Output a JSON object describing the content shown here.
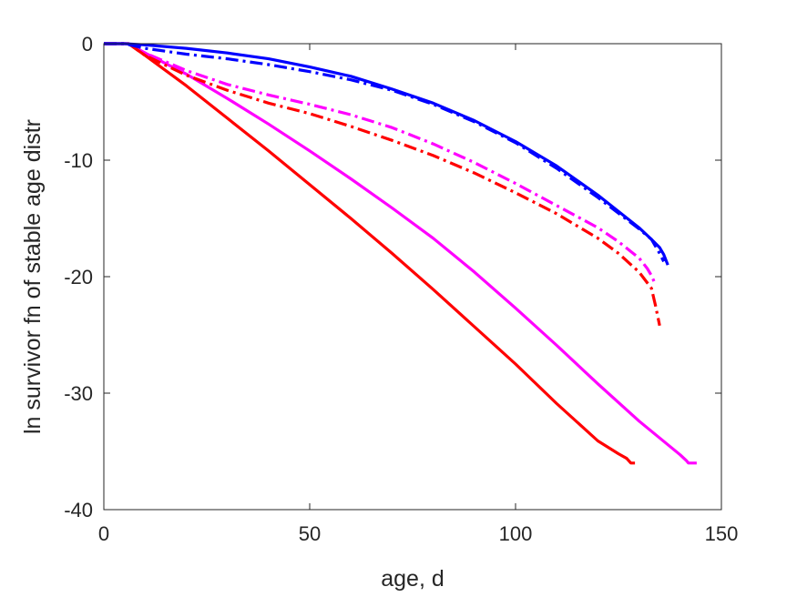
{
  "chart_data": {
    "type": "line",
    "title": "",
    "xlabel": "age, d",
    "ylabel": "ln survivor fn of stable age distr",
    "xlim": [
      0,
      150
    ],
    "ylim": [
      -40,
      0
    ],
    "xticks": [
      0,
      50,
      100,
      150
    ],
    "yticks": [
      0,
      -10,
      -20,
      -30,
      -40
    ],
    "xtick_labels": [
      "0",
      "50",
      "100",
      "150"
    ],
    "ytick_labels": [
      "0",
      "-10",
      "-20",
      "-30",
      "-40"
    ],
    "grid": false,
    "legend": "none",
    "series": [
      {
        "color": "#ff00ff",
        "style": "solid",
        "x": [
          0,
          6,
          10,
          20,
          30,
          40,
          50,
          60,
          70,
          80,
          90,
          100,
          110,
          120,
          130,
          140,
          141.5,
          142,
          144
        ],
        "y": [
          0,
          0,
          -0.8,
          -2.6,
          -4.7,
          -6.9,
          -9.2,
          -11.6,
          -14.1,
          -16.7,
          -19.6,
          -22.7,
          -25.9,
          -29.2,
          -32.4,
          -35.3,
          -35.8,
          -36,
          -36
        ]
      },
      {
        "color": "#ff00ff",
        "style": "dashdot",
        "x": [
          0,
          6,
          10,
          20,
          30,
          40,
          50,
          60,
          70,
          80,
          90,
          100,
          110,
          120,
          125,
          130,
          132,
          133,
          134
        ],
        "y": [
          0,
          0,
          -0.8,
          -2.3,
          -3.5,
          -4.4,
          -5.2,
          -6.1,
          -7.2,
          -8.6,
          -10.2,
          -12.0,
          -13.9,
          -15.8,
          -17.0,
          -18.4,
          -19.3,
          -19.9,
          -20.7
        ]
      },
      {
        "color": "#ff0000",
        "style": "solid",
        "x": [
          0,
          6,
          10,
          20,
          30,
          40,
          50,
          60,
          70,
          80,
          90,
          100,
          110,
          120,
          125,
          127,
          128,
          129
        ],
        "y": [
          0,
          0,
          -1.0,
          -3.6,
          -6.4,
          -9.2,
          -12.1,
          -15.0,
          -18.0,
          -21.1,
          -24.3,
          -27.5,
          -30.9,
          -34.1,
          -35.2,
          -35.6,
          -36,
          -36
        ]
      },
      {
        "color": "#ff0000",
        "style": "dashdot",
        "x": [
          0,
          6,
          10,
          20,
          30,
          40,
          50,
          60,
          70,
          80,
          90,
          100,
          110,
          120,
          125,
          130,
          133,
          134,
          135
        ],
        "y": [
          0,
          0,
          -1.0,
          -2.7,
          -4.0,
          -5.1,
          -6.0,
          -7.1,
          -8.3,
          -9.6,
          -11.1,
          -12.8,
          -14.6,
          -16.7,
          -18.0,
          -19.6,
          -21.0,
          -22.5,
          -24.2
        ]
      },
      {
        "color": "#0000ff",
        "style": "solid",
        "x": [
          0,
          5,
          10,
          20,
          30,
          40,
          50,
          60,
          70,
          80,
          90,
          100,
          110,
          120,
          130,
          133,
          135,
          136,
          137
        ],
        "y": [
          0,
          0,
          -0.1,
          -0.4,
          -0.8,
          -1.3,
          -2.0,
          -2.8,
          -3.9,
          -5.1,
          -6.6,
          -8.4,
          -10.5,
          -13.0,
          -15.8,
          -16.8,
          -17.5,
          -18.1,
          -19.0
        ]
      },
      {
        "color": "#0000ff",
        "style": "dashdot",
        "x": [
          0,
          5,
          10,
          20,
          30,
          40,
          50,
          60,
          70,
          80,
          90,
          100,
          110,
          120,
          130,
          133,
          134,
          135,
          136
        ],
        "y": [
          0,
          0,
          -0.4,
          -0.9,
          -1.3,
          -1.8,
          -2.4,
          -3.1,
          -4.0,
          -5.2,
          -6.7,
          -8.5,
          -10.7,
          -13.2,
          -15.9,
          -16.8,
          -17.4,
          -18.0,
          -18.7
        ]
      }
    ]
  }
}
